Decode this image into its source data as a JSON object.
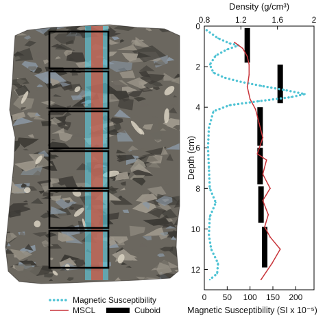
{
  "chart_data": {
    "type": "line",
    "y_axis": {
      "label": "Depth (cm)",
      "range": [
        0,
        13
      ],
      "ticks": [
        0,
        2,
        4,
        6,
        8,
        10,
        12
      ],
      "inverted": true
    },
    "top_axis": {
      "label": "Density (g/cm³)",
      "range": [
        0.8,
        2.0
      ],
      "ticks": [
        0.8,
        1.2,
        1.6,
        2.0
      ],
      "tick_labels": [
        "0.8",
        "1.2",
        "1.6",
        "2"
      ]
    },
    "bottom_axis": {
      "label": "Magnetic Susceptibility (SI x 10⁻⁵)",
      "range": [
        0,
        240
      ],
      "ticks": [
        0,
        50,
        100,
        150,
        200
      ],
      "tick_labels": [
        "0",
        "50",
        "100",
        "150",
        "200"
      ]
    },
    "series": [
      {
        "name": "Magnetic Susceptibility",
        "axis": "bottom",
        "style": "dotted",
        "color": "#4fc3d4",
        "points": [
          {
            "x": 5,
            "y": 0.2
          },
          {
            "x": 30,
            "y": 0.6
          },
          {
            "x": 55,
            "y": 0.85
          },
          {
            "x": 75,
            "y": 0.95
          },
          {
            "x": 50,
            "y": 1.15
          },
          {
            "x": 25,
            "y": 1.45
          },
          {
            "x": 12,
            "y": 1.9
          },
          {
            "x": 20,
            "y": 2.3
          },
          {
            "x": 45,
            "y": 2.55
          },
          {
            "x": 80,
            "y": 2.75
          },
          {
            "x": 125,
            "y": 2.95
          },
          {
            "x": 175,
            "y": 3.15
          },
          {
            "x": 220,
            "y": 3.35
          },
          {
            "x": 190,
            "y": 3.5
          },
          {
            "x": 120,
            "y": 3.7
          },
          {
            "x": 55,
            "y": 3.9
          },
          {
            "x": 20,
            "y": 4.2
          },
          {
            "x": 10,
            "y": 5.0
          },
          {
            "x": 8,
            "y": 6.0
          },
          {
            "x": 10,
            "y": 7.0
          },
          {
            "x": 12,
            "y": 8.0
          },
          {
            "x": 25,
            "y": 8.7
          },
          {
            "x": 12,
            "y": 9.4
          },
          {
            "x": 10,
            "y": 10.3
          },
          {
            "x": 15,
            "y": 11.0
          },
          {
            "x": 30,
            "y": 11.7
          },
          {
            "x": 28,
            "y": 12.2
          },
          {
            "x": 12,
            "y": 12.5
          }
        ]
      },
      {
        "name": "MSCL",
        "axis": "top",
        "style": "solid",
        "color": "#c8343a",
        "points": [
          {
            "x": 1.13,
            "y": 0.8
          },
          {
            "x": 1.22,
            "y": 1.1
          },
          {
            "x": 1.27,
            "y": 1.5
          },
          {
            "x": 1.29,
            "y": 1.9
          },
          {
            "x": 1.29,
            "y": 2.4
          },
          {
            "x": 1.27,
            "y": 3.0
          },
          {
            "x": 1.3,
            "y": 3.6
          },
          {
            "x": 1.36,
            "y": 4.1
          },
          {
            "x": 1.4,
            "y": 4.8
          },
          {
            "x": 1.44,
            "y": 5.5
          },
          {
            "x": 1.38,
            "y": 6.3
          },
          {
            "x": 1.48,
            "y": 6.6
          },
          {
            "x": 1.44,
            "y": 7.3
          },
          {
            "x": 1.52,
            "y": 8.0
          },
          {
            "x": 1.44,
            "y": 8.6
          },
          {
            "x": 1.5,
            "y": 9.3
          },
          {
            "x": 1.46,
            "y": 9.9
          },
          {
            "x": 1.52,
            "y": 10.4
          },
          {
            "x": 1.63,
            "y": 11.0
          },
          {
            "x": 1.54,
            "y": 11.7
          },
          {
            "x": 1.42,
            "y": 12.5
          }
        ]
      },
      {
        "name": "Cuboid",
        "axis": "top",
        "style": "bar",
        "color": "#000000",
        "segments": [
          {
            "x": 1.27,
            "y_top": 0.1,
            "y_bottom": 1.8
          },
          {
            "x": 1.63,
            "y_top": 1.9,
            "y_bottom": 3.8
          },
          {
            "x": 1.41,
            "y_top": 4.0,
            "y_bottom": 5.9
          },
          {
            "x": 1.41,
            "y_top": 6.0,
            "y_bottom": 7.8
          },
          {
            "x": 1.42,
            "y_top": 7.9,
            "y_bottom": 9.7
          },
          {
            "x": 1.46,
            "y_top": 9.9,
            "y_bottom": 11.9
          }
        ]
      }
    ],
    "legend": {
      "placement": "bottom",
      "entries": [
        {
          "label": "Magnetic Susceptibility",
          "series": 0
        },
        {
          "label": "MSCL",
          "series": 1
        },
        {
          "label": "Cuboid",
          "series": 2
        }
      ]
    }
  },
  "core_photo": {
    "colors": {
      "rock_base": "#6b675f",
      "rock_dark": "#3c3a35",
      "rock_light": "#9d978b",
      "clast_blue": "#8a97a3",
      "clast_pale": "#d9d2c2",
      "scan_blue": "#5ecfe3",
      "scan_red": "#d2503a"
    },
    "sample_boxes": 6
  }
}
